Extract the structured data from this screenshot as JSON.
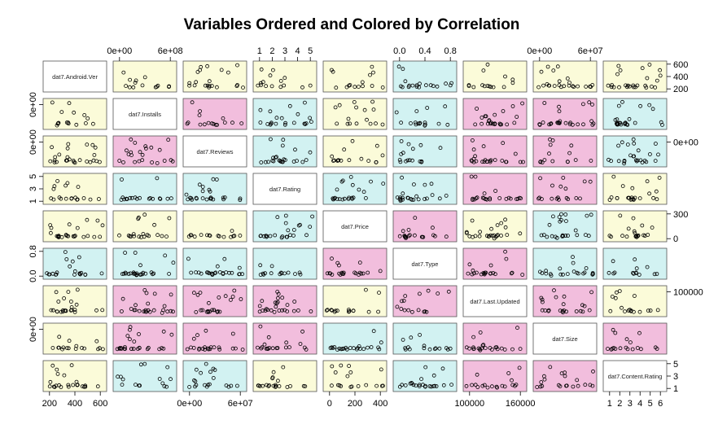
{
  "chart_data": {
    "type": "scatter-matrix",
    "title": "Variables Ordered and Colored by Correlation",
    "variables": [
      "dat7.Android.Ver",
      "dat7.Installs",
      "dat7.Reviews",
      "dat7.Rating",
      "dat7.Price",
      "dat7.Type",
      "dat7.Last.Updated",
      "dat7.Size",
      "dat7.Content.Rating"
    ],
    "panel_colors": {
      "low": "#fbfbd9",
      "mid": "#d2f2f2",
      "high": "#f2bedd"
    },
    "panel_color_levels": [
      [
        "diag",
        "low",
        "low",
        "low",
        "low",
        "mid",
        "low",
        "low",
        "low"
      ],
      [
        "low",
        "diag",
        "high",
        "mid",
        "low",
        "mid",
        "high",
        "high",
        "mid"
      ],
      [
        "low",
        "high",
        "diag",
        "mid",
        "low",
        "mid",
        "high",
        "high",
        "mid"
      ],
      [
        "low",
        "mid",
        "mid",
        "diag",
        "mid",
        "mid",
        "high",
        "high",
        "low"
      ],
      [
        "low",
        "low",
        "low",
        "mid",
        "diag",
        "high",
        "low",
        "mid",
        "low"
      ],
      [
        "mid",
        "mid",
        "mid",
        "mid",
        "high",
        "diag",
        "high",
        "mid",
        "mid"
      ],
      [
        "low",
        "high",
        "high",
        "high",
        "low",
        "high",
        "diag",
        "high",
        "low"
      ],
      [
        "low",
        "high",
        "high",
        "high",
        "mid",
        "mid",
        "high",
        "diag",
        "high"
      ],
      [
        "low",
        "mid",
        "mid",
        "low",
        "low",
        "mid",
        "high",
        "high",
        "diag"
      ]
    ],
    "axes": {
      "top": [
        {
          "col": 1,
          "ticks": [
            "0e+00",
            "6e+08"
          ]
        },
        {
          "col": 3,
          "ticks": [
            "1",
            "2",
            "3",
            "4",
            "5"
          ]
        },
        {
          "col": 5,
          "ticks": [
            "0.0",
            "0.4",
            "0.8"
          ]
        },
        {
          "col": 7,
          "ticks": [
            "0e+00",
            "6e+07"
          ]
        }
      ],
      "bottom": [
        {
          "col": 0,
          "ticks": [
            "200",
            "400",
            "600"
          ]
        },
        {
          "col": 2,
          "ticks": [
            "0e+00",
            "6e+07"
          ]
        },
        {
          "col": 4,
          "ticks": [
            "0",
            "200",
            "400"
          ]
        },
        {
          "col": 6,
          "ticks": [
            "100000",
            "160000"
          ]
        },
        {
          "col": 8,
          "ticks": [
            "1",
            "2",
            "3",
            "4",
            "5",
            "6"
          ]
        }
      ],
      "left": [
        {
          "row": 1,
          "ticks": [
            "0e+00"
          ]
        },
        {
          "row": 2,
          "ticks": [
            "0e+00"
          ]
        },
        {
          "row": 3,
          "ticks": [
            "1",
            "3",
            "5"
          ]
        },
        {
          "row": 5,
          "ticks": [
            "0.0",
            "0.8"
          ]
        },
        {
          "row": 7,
          "ticks": [
            "0e+00"
          ]
        }
      ],
      "right": [
        {
          "row": 0,
          "ticks": [
            "200",
            "400",
            "600"
          ]
        },
        {
          "row": 2,
          "ticks": [
            "0e+00"
          ]
        },
        {
          "row": 4,
          "ticks": [
            "0",
            "300"
          ]
        },
        {
          "row": 6,
          "ticks": [
            "100000"
          ]
        },
        {
          "row": 8,
          "ticks": [
            "1",
            "3",
            "5"
          ]
        }
      ]
    },
    "ranges": {
      "dat7.Android.Ver": [
        100,
        700
      ],
      "dat7.Installs": [
        0,
        1000000000
      ],
      "dat7.Reviews": [
        0,
        80000000
      ],
      "dat7.Rating": [
        1,
        5
      ],
      "dat7.Price": [
        0,
        400
      ],
      "dat7.Type": [
        0,
        1
      ],
      "dat7.Last.Updated": [
        90000,
        190000
      ],
      "dat7.Size": [
        0,
        100000000
      ],
      "dat7.Content.Rating": [
        1,
        6
      ]
    },
    "grid": false,
    "legend": "none"
  }
}
